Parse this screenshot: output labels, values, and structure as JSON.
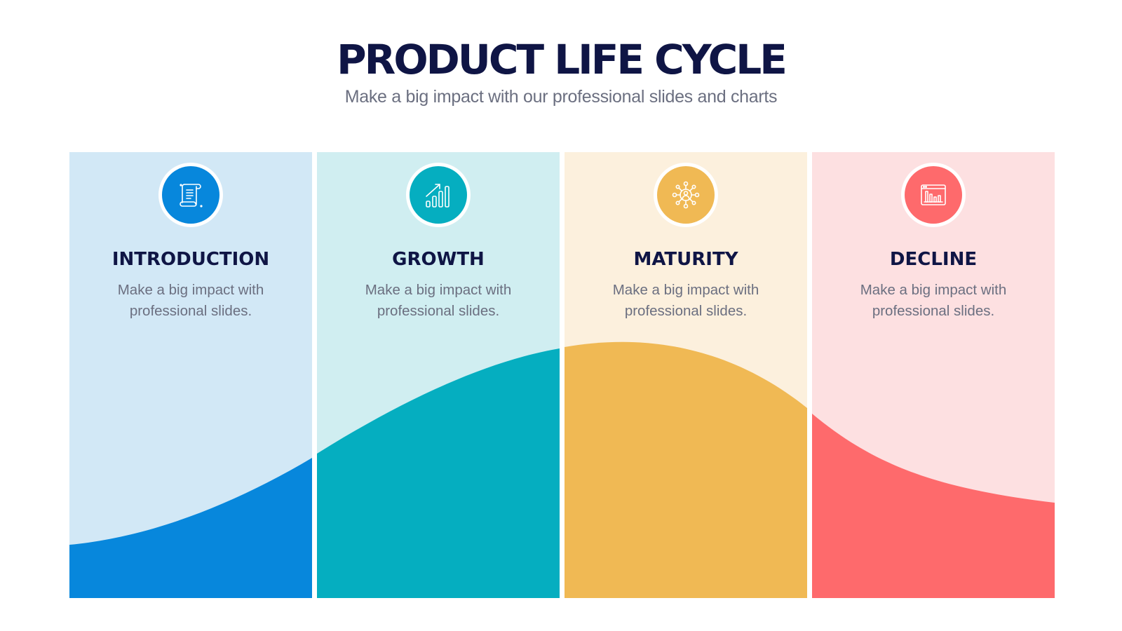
{
  "header": {
    "title": "PRODUCT LIFE CYCLE",
    "subtitle": "Make a big impact with our professional slides and charts"
  },
  "stages": [
    {
      "title": "INTRODUCTION",
      "description": "Make a big impact with professional slides.",
      "icon": "document-scroll-icon",
      "bg_color": "#d2e8f6",
      "accent_color": "#0787dc"
    },
    {
      "title": "GROWTH",
      "description": "Make a big impact with professional slides.",
      "icon": "growth-chart-icon",
      "bg_color": "#d0eef1",
      "accent_color": "#05aec0"
    },
    {
      "title": "MATURITY",
      "description": "Make a big impact with professional slides.",
      "icon": "network-user-icon",
      "bg_color": "#fcf0dd",
      "accent_color": "#f0b954"
    },
    {
      "title": "DECLINE",
      "description": "Make a big impact with professional slides.",
      "icon": "dashboard-chart-icon",
      "bg_color": "#fde0e1",
      "accent_color": "#fe6a6c"
    }
  ]
}
